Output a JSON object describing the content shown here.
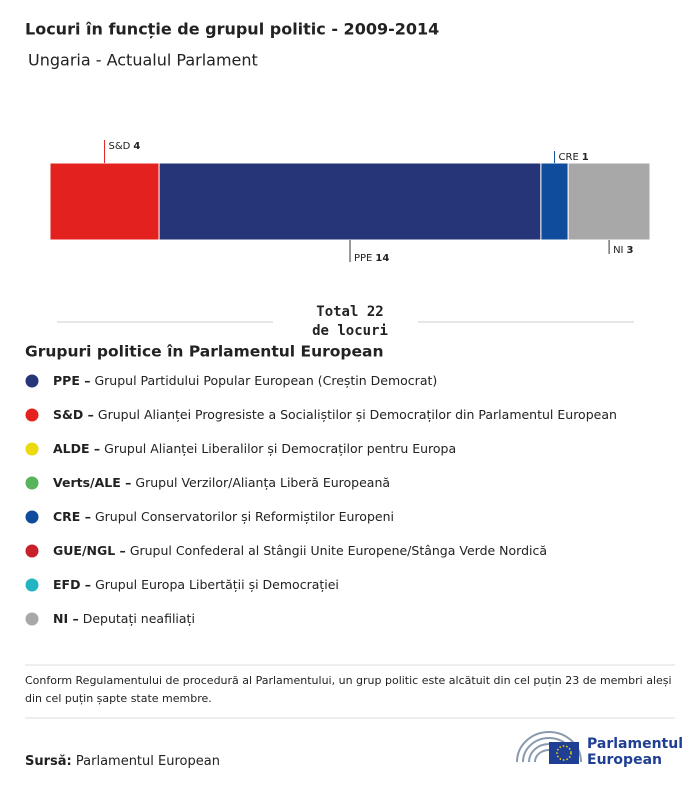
{
  "chart_data": {
    "type": "stacked-bar",
    "title": "Locuri în funcție de grupul politic - 2009-2014",
    "subtitle": "Ungaria - Actualul Parlament",
    "series": [
      {
        "name": "S&D",
        "color": "#e3211f",
        "values": [
          4
        ]
      },
      {
        "name": "PPE",
        "color": "#263478",
        "values": [
          14
        ]
      },
      {
        "name": "CRE",
        "color": "#0f4c9b",
        "values": [
          1
        ]
      },
      {
        "name": "NI",
        "color": "#a8a8a8",
        "values": [
          3
        ]
      }
    ],
    "total": {
      "prefix": "Total",
      "value": 22,
      "suffix": "de locuri"
    }
  },
  "legend": {
    "title": "Grupuri politice în Parlamentul European",
    "groups": [
      {
        "abbr": "PPE –",
        "desc": "Grupul Partidului Popular European (Creștin Democrat)",
        "color": "#263478"
      },
      {
        "abbr": "S&D –",
        "desc": "Grupul Alianței Progresiste a Socialiștilor și Democraților din Parlamentul European",
        "color": "#e3211f"
      },
      {
        "abbr": "ALDE –",
        "desc": "Grupul Alianței Liberalilor și Democraților pentru Europa",
        "color": "#ecd90e"
      },
      {
        "abbr": "Verts/ALE –",
        "desc": "Grupul Verzilor/Alianța Liberă Europeană",
        "color": "#57b45a"
      },
      {
        "abbr": "CRE –",
        "desc": "Grupul Conservatorilor și Reformiștilor Europeni",
        "color": "#0f4c9b"
      },
      {
        "abbr": "GUE/NGL –",
        "desc": "Grupul Confederal al Stângii Unite Europene/Stânga Verde Nordică",
        "color": "#c8202a"
      },
      {
        "abbr": "EFD –",
        "desc": "Grupul Europa Libertății și Democrației",
        "color": "#23b4c3"
      },
      {
        "abbr": "NI –",
        "desc": "Deputați neafiliați",
        "color": "#a8a8a8"
      }
    ]
  },
  "note": "Conform Regulamentului de procedură al Parlamentului, un grup politic este alcătuit din cel puțin 23 de membri aleși din cel puțin șapte state membre.",
  "source": {
    "label": "Sursă:",
    "text": "Parlamentul European"
  },
  "logo": {
    "line1": "Parlamentul",
    "line2": "European"
  }
}
